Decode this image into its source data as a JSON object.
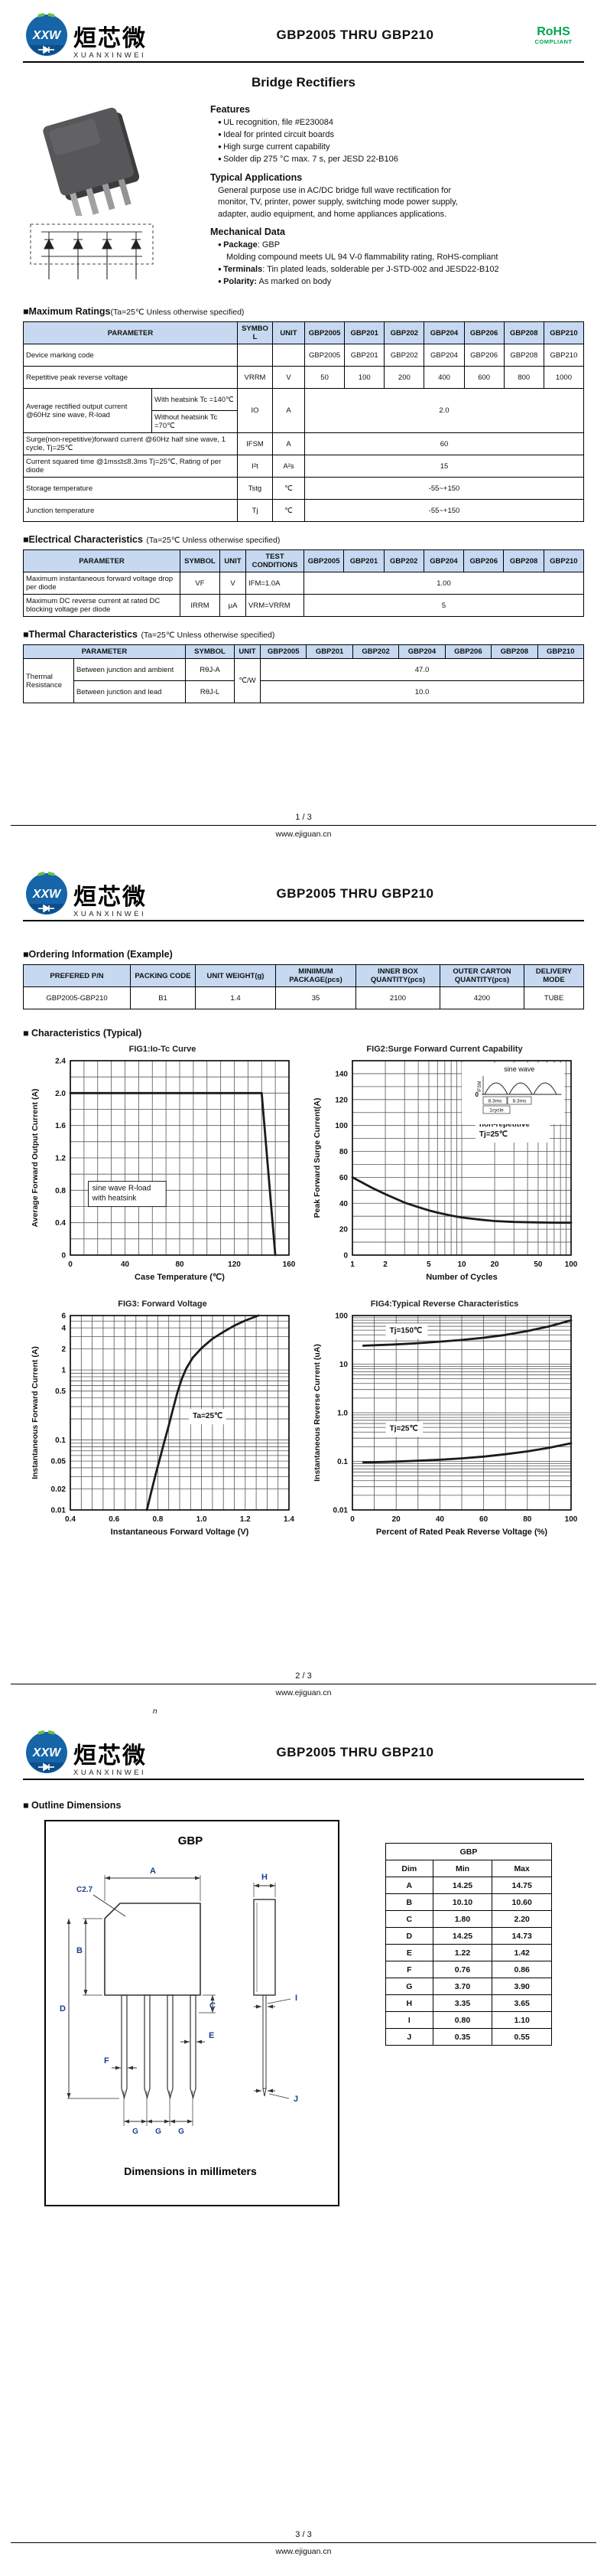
{
  "brand": {
    "cn": "烜芯微",
    "en": "XUANXINWEI",
    "monogram": "XXW"
  },
  "doc_title": "GBP2005 THRU GBP210",
  "rohs": {
    "top": "RoHS",
    "bottom": "COMPLIANT",
    "color": "#00a651"
  },
  "site": "www.ejiguan.cn",
  "pages": {
    "p1": "1 / 3",
    "p2": "2 / 3",
    "p3": "3 / 3"
  },
  "stray_mark": "n",
  "devices": [
    "GBP2005",
    "GBP201",
    "GBP202",
    "GBP204",
    "GBP206",
    "GBP208",
    "GBP210"
  ],
  "p1": {
    "heading": "Bridge Rectifiers",
    "features": {
      "title": "Features",
      "items": [
        "UL recognition, file #E230084",
        "Ideal for printed circuit boards",
        "High surge current capability",
        "Solder dip 275 °C max. 7 s, per JESD 22-B106"
      ]
    },
    "apps": {
      "title": "Typical Applications",
      "text": "General purpose use in AC/DC bridge full wave rectification for monitor, TV, printer, power supply, switching mode power supply, adapter, audio equipment, and home appliances applications."
    },
    "mech": {
      "title": "Mechanical Data",
      "package_label": "Package",
      "package_text": ": GBP",
      "package_note": "Molding compound meets UL 94 V-0 flammability rating, RoHS-compliant",
      "terminals_label": "Terminals",
      "terminals_text": ": Tin plated leads, solderable  per J-STD-002 and JESD22-B102",
      "polarity_label": "Polarity:",
      "polarity_text": " As marked on body"
    }
  },
  "max_ratings": {
    "title": "■Maximum Ratings",
    "cond": "(Ta=25℃ Unless otherwise specified)",
    "h": {
      "param": "PARAMETER",
      "symbol": "SYMBOL",
      "unit": "UNIT"
    },
    "marking": {
      "param": "Device marking code",
      "values": [
        "GBP2005",
        "GBP201",
        "GBP202",
        "GBP204",
        "GBP206",
        "GBP208",
        "GBP210"
      ]
    },
    "vrrm": {
      "param": "Repetitive peak reverse voltage",
      "symbol": "VRRM",
      "unit": "V",
      "values": [
        "50",
        "100",
        "200",
        "400",
        "600",
        "800",
        "1000"
      ]
    },
    "io": {
      "param": "Average rectified output current @60Hz sine wave, R-load",
      "sub1": "With heatsink Tc =140℃",
      "sub2": "Without heatsink Tc =70℃",
      "symbol": "IO",
      "unit": "A",
      "value": "2.0"
    },
    "ifsm": {
      "param": "Surge(non-repetitive)forward current @60Hz half sine wave, 1 cycle, Tj=25℃",
      "symbol": "IFSM",
      "unit": "A",
      "value": "60"
    },
    "i2t": {
      "param": "Current squared time @1ms≤t≤8.3ms Tj=25℃, Rating of per diode",
      "symbol": "I²t",
      "unit": "A²s",
      "value": "15"
    },
    "tstg": {
      "param": "Storage temperature",
      "symbol": "Tstg",
      "unit": "℃",
      "value": "-55~+150"
    },
    "tj": {
      "param": "Junction temperature",
      "symbol": "Tj",
      "unit": "℃",
      "value": "-55~+150"
    }
  },
  "electrical": {
    "title": "■Electrical Characteristics",
    "cond": "(Ta=25℃ Unless otherwise specified)",
    "h": {
      "param": "PARAMETER",
      "symbol": "SYMBOL",
      "unit": "UNIT",
      "test": "TEST CONDITIONS"
    },
    "vf": {
      "param": "Maximum instantaneous forward voltage drop per diode",
      "symbol": "VF",
      "unit": "V",
      "test": "IFM=1.0A",
      "value": "1.00"
    },
    "irrm": {
      "param": "Maximum DC reverse current at rated DC blocking voltage per diode",
      "symbol": "IRRM",
      "unit": "μA",
      "test": "VRM=VRRM",
      "value": "5"
    }
  },
  "thermal": {
    "title": "■Thermal Characteristics",
    "cond": "(Ta=25℃ Unless otherwise specified)",
    "h": {
      "param": "PARAMETER",
      "symbol": "SYMBOL",
      "unit": "UNIT"
    },
    "group": "Thermal Resistance",
    "unit": "℃/W",
    "ja": {
      "param": "Between junction and ambient",
      "symbol": "RθJ-A",
      "value": "47.0"
    },
    "jl": {
      "param": "Between junction and lead",
      "symbol": "RθJ-L",
      "value": "10.0"
    }
  },
  "ordering": {
    "title": "■Ordering Information (Example)",
    "headers": [
      "PREFERED P/N",
      "PACKING CODE",
      "UNIT WEIGHT(g)",
      "MINIIMUM PACKAGE(pcs)",
      "INNER BOX QUANTITY(pcs)",
      "OUTER CARTON QUANTITY(pcs)",
      "DELIVERY MODE"
    ],
    "row": [
      "GBP2005-GBP210",
      "B1",
      "1.4",
      "35",
      "2100",
      "4200",
      "TUBE"
    ]
  },
  "charts_title": "■ Characteristics (Typical)",
  "chart_data": [
    {
      "type": "line",
      "name": "fig1-io-tc",
      "title": "FIG1:Io-Tc Curve",
      "x": {
        "label": "Case Temperature (℃)",
        "scale": "linear",
        "min": 0,
        "max": 160,
        "step": 10,
        "ticks": [
          {
            "v": 0,
            "l": "0"
          },
          {
            "v": 40,
            "l": "40"
          },
          {
            "v": 80,
            "l": "80"
          },
          {
            "v": 120,
            "l": "120"
          },
          {
            "v": 160,
            "l": "160"
          }
        ]
      },
      "y": {
        "label": "Average Forward Output Current (A)",
        "scale": "linear",
        "min": 0,
        "max": 2.4,
        "step": 0.2,
        "ticks": [
          {
            "v": 0,
            "l": "0"
          },
          {
            "v": 0.4,
            "l": "0.4"
          },
          {
            "v": 0.8,
            "l": "0.8"
          },
          {
            "v": 1.2,
            "l": "1.2"
          },
          {
            "v": 1.6,
            "l": "1.6"
          },
          {
            "v": 2.0,
            "l": "2.0"
          },
          {
            "v": 2.4,
            "l": "2.4"
          }
        ]
      },
      "series": [
        {
          "name": "Io",
          "points": [
            [
              0,
              2.0
            ],
            [
              140,
              2.0
            ],
            [
              150,
              0
            ]
          ]
        }
      ],
      "ann": [
        {
          "fx": 0.1,
          "fy": 0.66,
          "lines": [
            "sine wave R-load",
            "with heatsink"
          ],
          "box": true,
          "mono": true
        }
      ]
    },
    {
      "type": "line",
      "name": "fig2-surge",
      "title": "FIG2:Surge Forward Current Capability",
      "x": {
        "label": "Number of Cycles",
        "scale": "log",
        "min": 1,
        "max": 100,
        "ticks": [
          {
            "v": 1,
            "l": "1"
          },
          {
            "v": 2,
            "l": "2"
          },
          {
            "v": 5,
            "l": "5"
          },
          {
            "v": 10,
            "l": "10"
          },
          {
            "v": 20,
            "l": "20"
          },
          {
            "v": 50,
            "l": "50"
          },
          {
            "v": 100,
            "l": "100"
          }
        ]
      },
      "y": {
        "label": "Peak Forward Surge Current(A)",
        "scale": "linear",
        "min": 0,
        "max": 150,
        "step": 10,
        "ticks": [
          {
            "v": 0,
            "l": "0"
          },
          {
            "v": 20,
            "l": "20"
          },
          {
            "v": 40,
            "l": "40"
          },
          {
            "v": 60,
            "l": "60"
          },
          {
            "v": 80,
            "l": "80"
          },
          {
            "v": 100,
            "l": "100"
          },
          {
            "v": 120,
            "l": "120"
          },
          {
            "v": 140,
            "l": "140"
          }
        ]
      },
      "series": [
        {
          "name": "IFSM",
          "points": [
            [
              1,
              60
            ],
            [
              1.5,
              52
            ],
            [
              2,
              47
            ],
            [
              3,
              40.5
            ],
            [
              4,
              37
            ],
            [
              5,
              34.5
            ],
            [
              6,
              32.8
            ],
            [
              8,
              30.5
            ],
            [
              10,
              29
            ],
            [
              15,
              27.3
            ],
            [
              20,
              26.3
            ],
            [
              30,
              25.6
            ],
            [
              50,
              25.2
            ],
            [
              70,
              25.05
            ],
            [
              100,
              25
            ]
          ]
        }
      ],
      "ann": [
        {
          "fx": 0.58,
          "fy": 0.33,
          "lines": [
            "non-repetitive",
            "Tj=25℃"
          ]
        }
      ],
      "inset": {
        "title": "sine wave",
        "zero": "0",
        "ifsm": "IFSM",
        "t1": "8.3ms",
        "t2": "8.3ms",
        "cyc": "1cycle"
      }
    },
    {
      "type": "line",
      "name": "fig3-vf",
      "title": "FIG3: Forward Voltage",
      "x": {
        "label": "Instantaneous Forward Voltage (V)",
        "scale": "linear",
        "min": 0.4,
        "max": 1.4,
        "step": 0.05,
        "ticks": [
          {
            "v": 0.4,
            "l": "0.4"
          },
          {
            "v": 0.6,
            "l": "0.6"
          },
          {
            "v": 0.8,
            "l": "0.8"
          },
          {
            "v": 1.0,
            "l": "1.0"
          },
          {
            "v": 1.2,
            "l": "1.2"
          },
          {
            "v": 1.4,
            "l": "1.4"
          }
        ]
      },
      "y": {
        "label": "Instantaneous Forward Current (A)",
        "scale": "log",
        "min": 0.01,
        "max": 6,
        "ticks": [
          {
            "v": 0.01,
            "l": "0.01"
          },
          {
            "v": 0.02,
            "l": "0.02"
          },
          {
            "v": 0.05,
            "l": "0.05"
          },
          {
            "v": 0.1,
            "l": "0.1"
          },
          {
            "v": 0.5,
            "l": "0.5"
          },
          {
            "v": 1,
            "l": "1"
          },
          {
            "v": 2,
            "l": "2"
          },
          {
            "v": 4,
            "l": "4"
          },
          {
            "v": 6,
            "l": "6"
          }
        ]
      },
      "series": [
        {
          "name": "VF",
          "points": [
            [
              0.75,
              0.01
            ],
            [
              0.77,
              0.018
            ],
            [
              0.79,
              0.032
            ],
            [
              0.81,
              0.055
            ],
            [
              0.83,
              0.095
            ],
            [
              0.85,
              0.16
            ],
            [
              0.87,
              0.28
            ],
            [
              0.89,
              0.48
            ],
            [
              0.91,
              0.75
            ],
            [
              0.93,
              1.05
            ],
            [
              0.96,
              1.5
            ],
            [
              1.0,
              2.05
            ],
            [
              1.05,
              2.8
            ],
            [
              1.1,
              3.5
            ],
            [
              1.15,
              4.3
            ],
            [
              1.2,
              5.1
            ],
            [
              1.26,
              6.0
            ]
          ]
        }
      ],
      "ann": [
        {
          "fx": 0.56,
          "fy": 0.52,
          "lines": [
            "Ta=25℃"
          ]
        }
      ]
    },
    {
      "type": "line",
      "name": "fig4-reverse",
      "title": "FIG4:Typical Reverse Characteristics",
      "x": {
        "label": "Percent of Rated Peak Reverse Voltage  (%)",
        "scale": "linear",
        "min": 0,
        "max": 100,
        "step": 10,
        "ticks": [
          {
            "v": 0,
            "l": "0"
          },
          {
            "v": 20,
            "l": "20"
          },
          {
            "v": 40,
            "l": "40"
          },
          {
            "v": 60,
            "l": "60"
          },
          {
            "v": 80,
            "l": "80"
          },
          {
            "v": 100,
            "l": "100"
          }
        ]
      },
      "y": {
        "label": "Instantaneous Reverse Current (uA)",
        "scale": "log",
        "min": 0.01,
        "max": 100,
        "ticks": [
          {
            "v": 0.01,
            "l": "0.01"
          },
          {
            "v": 0.1,
            "l": "0.1"
          },
          {
            "v": 1,
            "l": "1.0"
          },
          {
            "v": 10,
            "l": "10"
          },
          {
            "v": 100,
            "l": "100"
          }
        ]
      },
      "series": [
        {
          "name": "Tj=150℃",
          "points": [
            [
              5,
              24
            ],
            [
              10,
              24.5
            ],
            [
              20,
              25.5
            ],
            [
              30,
              27
            ],
            [
              40,
              29
            ],
            [
              50,
              31.5
            ],
            [
              60,
              35
            ],
            [
              70,
              40
            ],
            [
              80,
              48
            ],
            [
              90,
              60
            ],
            [
              100,
              80
            ]
          ]
        },
        {
          "name": "Tj=25℃",
          "points": [
            [
              5,
              0.095
            ],
            [
              10,
              0.096
            ],
            [
              20,
              0.099
            ],
            [
              30,
              0.103
            ],
            [
              40,
              0.108
            ],
            [
              50,
              0.115
            ],
            [
              60,
              0.125
            ],
            [
              70,
              0.14
            ],
            [
              80,
              0.16
            ],
            [
              90,
              0.19
            ],
            [
              100,
              0.235
            ]
          ]
        }
      ],
      "ann": [
        {
          "fx": 0.17,
          "fy": 0.08,
          "lines": [
            "Tj=150℃"
          ]
        },
        {
          "fx": 0.17,
          "fy": 0.585,
          "lines": [
            "Tj=25℃"
          ]
        }
      ]
    }
  ],
  "outline": {
    "title": "■ Outline Dimensions",
    "pkg": "GBP",
    "caption": "Dimensions in millimeters",
    "labels": {
      "A": "A",
      "B": "B",
      "C": "C",
      "D": "D",
      "E": "E",
      "F": "F",
      "G": "G",
      "H": "H",
      "I": "I",
      "J": "J",
      "chamfer": "C2.7"
    },
    "table_title": "GBP",
    "cols": [
      "Dim",
      "Min",
      "Max"
    ],
    "dims": [
      {
        "dim": "A",
        "min": "14.25",
        "max": "14.75"
      },
      {
        "dim": "B",
        "min": "10.10",
        "max": "10.60"
      },
      {
        "dim": "C",
        "min": "1.80",
        "max": "2.20"
      },
      {
        "dim": "D",
        "min": "14.25",
        "max": "14.73"
      },
      {
        "dim": "E",
        "min": "1.22",
        "max": "1.42"
      },
      {
        "dim": "F",
        "min": "0.76",
        "max": "0.86"
      },
      {
        "dim": "G",
        "min": "3.70",
        "max": "3.90"
      },
      {
        "dim": "H",
        "min": "3.35",
        "max": "3.65"
      },
      {
        "dim": "I",
        "min": "0.80",
        "max": "1.10"
      },
      {
        "dim": "J",
        "min": "0.35",
        "max": "0.55"
      }
    ]
  }
}
